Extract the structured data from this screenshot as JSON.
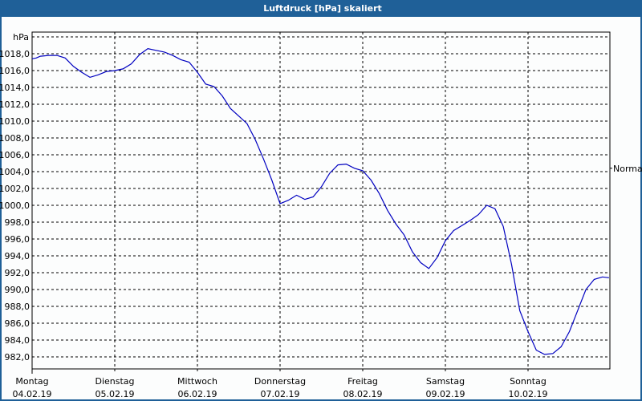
{
  "window": {
    "title": "Luftdruck [hPa] skaliert"
  },
  "chart_data": {
    "type": "line",
    "title": "Luftdruck [hPa] skaliert",
    "ylabel": "hPa",
    "xlabel": "",
    "ylim": [
      980.5,
      1020
    ],
    "yticks": [
      "1018,0",
      "1016,0",
      "1014,0",
      "1012,0",
      "1010,0",
      "1008,0",
      "1006,0",
      "1004,0",
      "1002,0",
      "1000,0",
      "998,0",
      "996,0",
      "994,0",
      "992,0",
      "990,0",
      "988,0",
      "986,0",
      "984,0",
      "982,0"
    ],
    "categories": [
      {
        "day": "Montag",
        "date": "04.02.19"
      },
      {
        "day": "Dienstag",
        "date": "05.02.19"
      },
      {
        "day": "Mittwoch",
        "date": "06.02.19"
      },
      {
        "day": "Donnerstag",
        "date": "07.02.19"
      },
      {
        "day": "Freitag",
        "date": "08.02.19"
      },
      {
        "day": "Samstag",
        "date": "09.02.19"
      },
      {
        "day": "Sonntag",
        "date": "10.02.19"
      }
    ],
    "reference_line": {
      "label": "Normal",
      "value": 1004.4
    },
    "grid": true,
    "line_color": "#0000c0",
    "series": [
      {
        "name": "Luftdruck",
        "x_days": [
          0,
          0.05,
          0.1,
          0.2,
          0.3,
          0.4,
          0.5,
          0.6,
          0.7,
          0.8,
          0.9,
          1.0,
          1.1,
          1.2,
          1.3,
          1.4,
          1.5,
          1.6,
          1.7,
          1.8,
          1.9,
          2.0,
          2.1,
          2.2,
          2.3,
          2.4,
          2.5,
          2.6,
          2.7,
          2.8,
          2.9,
          3.0,
          3.1,
          3.2,
          3.3,
          3.4,
          3.5,
          3.6,
          3.7,
          3.8,
          3.9,
          4.0,
          4.1,
          4.2,
          4.3,
          4.4,
          4.5,
          4.6,
          4.7,
          4.8,
          4.9,
          5.0,
          5.1,
          5.2,
          5.3,
          5.4,
          5.5,
          5.6,
          5.7,
          5.8,
          5.9,
          6.0,
          6.1,
          6.2,
          6.3,
          6.4,
          6.5,
          6.6,
          6.7,
          6.8,
          6.9,
          6.98
        ],
        "values": [
          1017.4,
          1017.5,
          1017.7,
          1017.8,
          1017.8,
          1017.5,
          1016.5,
          1015.8,
          1015.2,
          1015.5,
          1015.9,
          1016.0,
          1016.2,
          1016.8,
          1017.9,
          1018.6,
          1018.4,
          1018.2,
          1017.8,
          1017.3,
          1017.0,
          1015.8,
          1014.4,
          1014.1,
          1013.0,
          1011.5,
          1010.6,
          1009.7,
          1007.8,
          1005.5,
          1003.0,
          1000.2,
          1000.6,
          1001.2,
          1000.7,
          1001.0,
          1002.2,
          1003.8,
          1004.8,
          1004.9,
          1004.4,
          1004.1,
          1003.0,
          1001.4,
          999.4,
          997.8,
          996.5,
          994.5,
          993.2,
          992.5,
          993.8,
          995.8,
          997.0,
          997.6,
          998.2,
          998.9,
          1000.0,
          999.6,
          997.5,
          993.0,
          987.5,
          985.0,
          982.8,
          982.3,
          982.4,
          983.2,
          985.0,
          987.5,
          990.0,
          991.2,
          991.5,
          991.4
        ]
      }
    ]
  }
}
